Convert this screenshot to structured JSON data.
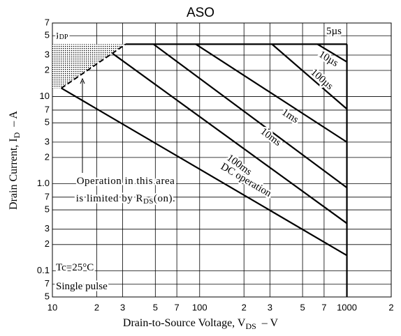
{
  "chart_data": {
    "type": "line",
    "title": "ASO",
    "xlabel": {
      "text": "Drain-to-Source Voltage, V",
      "sub": "DS",
      "unit": "–  V"
    },
    "ylabel": {
      "text": "Drain Current, I",
      "sub": "D",
      "unit": "–  A"
    },
    "xscale": "log",
    "yscale": "log",
    "xlim": [
      10,
      2000
    ],
    "ylim": [
      0.05,
      70
    ],
    "xticks": [
      10,
      {
        "value": 20,
        "label": "2"
      },
      {
        "value": 30,
        "label": "3"
      },
      {
        "value": 50,
        "label": "5"
      },
      {
        "value": 70,
        "label": "7"
      },
      100,
      {
        "value": 200,
        "label": "2"
      },
      {
        "value": 300,
        "label": "3"
      },
      {
        "value": 500,
        "label": "5"
      },
      {
        "value": 700,
        "label": "7"
      },
      1000,
      {
        "value": 2000,
        "label": "2"
      }
    ],
    "yticks": [
      {
        "value": 0.05,
        "label": "5"
      },
      {
        "value": 0.07,
        "label": "7"
      },
      0.1,
      {
        "value": 0.2,
        "label": "2"
      },
      {
        "value": 0.3,
        "label": "3"
      },
      {
        "value": 0.5,
        "label": "5"
      },
      {
        "value": 0.7,
        "label": "7"
      },
      {
        "value": 1,
        "label": "1.0"
      },
      {
        "value": 2,
        "label": "2"
      },
      {
        "value": 3,
        "label": "3"
      },
      {
        "value": 5,
        "label": "5"
      },
      {
        "value": 7,
        "label": "7"
      },
      10,
      {
        "value": 20,
        "label": "2"
      },
      {
        "value": 30,
        "label": "3"
      },
      {
        "value": 50,
        "label": "5"
      },
      {
        "value": 70,
        "label": "7"
      }
    ],
    "grid": true,
    "series": [
      {
        "name": "5µs",
        "color": "#000000",
        "x": [
          31.5,
          1000
        ],
        "values": [
          40,
          40
        ]
      },
      {
        "name": "10µs",
        "color": "#000000",
        "x": [
          630,
          1000
        ],
        "values": [
          40,
          25
        ]
      },
      {
        "name": "100µs",
        "color": "#000000",
        "x": [
          310,
          1000
        ],
        "values": [
          40,
          7.2
        ]
      },
      {
        "name": "1ms",
        "color": "#000000",
        "x": [
          94,
          1000
        ],
        "values": [
          40,
          3.0
        ]
      },
      {
        "name": "10ms",
        "color": "#000000",
        "x": [
          48.6,
          1000
        ],
        "values": [
          40,
          0.9
        ]
      },
      {
        "name": "100ms",
        "color": "#000000",
        "x": [
          25.8,
          1000
        ],
        "values": [
          31,
          0.35
        ]
      },
      {
        "name": "DC operation",
        "color": "#000000",
        "x": [
          11.5,
          1000
        ],
        "values": [
          12.5,
          0.15
        ]
      }
    ],
    "rds_limit": {
      "x": [
        11.5,
        31.5
      ],
      "values": [
        12.5,
        40
      ]
    },
    "vdss_limit": {
      "x": [
        1000,
        1000
      ],
      "values": [
        40,
        0.05
      ]
    },
    "annotations": {
      "idp": {
        "text": "I",
        "sub": "DP"
      },
      "rds_line1": "Operation in this area",
      "rds_line2": {
        "text": "is limited by R",
        "sub": "DS",
        "after": "(on)."
      },
      "condition1": "Tc=25°C",
      "condition2": "Single pulse"
    }
  }
}
